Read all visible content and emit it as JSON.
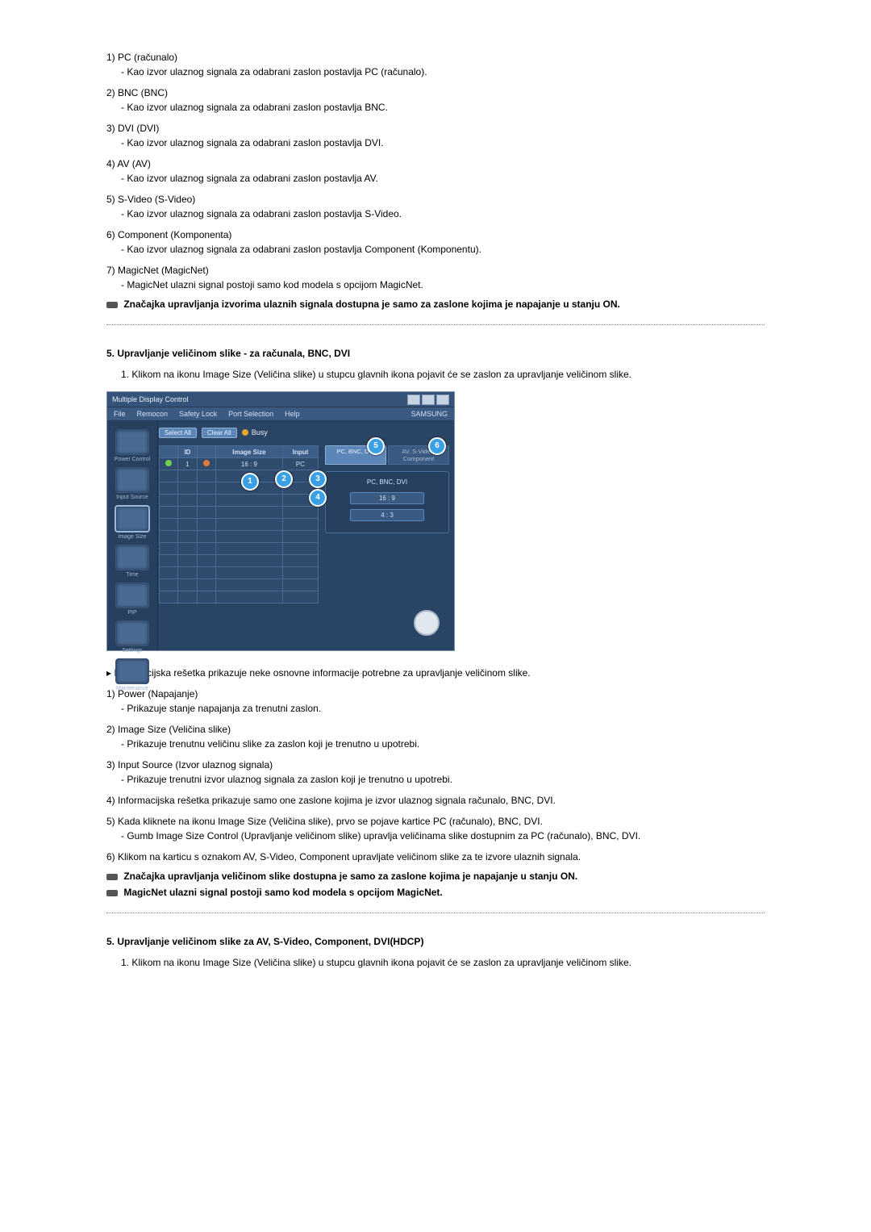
{
  "list1": [
    {
      "num": "1)",
      "title": "PC (računalo)",
      "desc": "Kao izvor ulaznog signala za odabrani zaslon postavlja PC (računalo)."
    },
    {
      "num": "2)",
      "title": "BNC (BNC)",
      "desc": "Kao izvor ulaznog signala za odabrani zaslon postavlja BNC."
    },
    {
      "num": "3)",
      "title": "DVI (DVI)",
      "desc": "Kao izvor ulaznog signala za odabrani zaslon postavlja DVI."
    },
    {
      "num": "4)",
      "title": "AV (AV)",
      "desc": "Kao izvor ulaznog signala za odabrani zaslon postavlja AV."
    },
    {
      "num": "5)",
      "title": "S-Video (S-Video)",
      "desc": "Kao izvor ulaznog signala za odabrani zaslon postavlja S-Video."
    },
    {
      "num": "6)",
      "title": "Component (Komponenta)",
      "desc": "Kao izvor ulaznog signala za odabrani zaslon postavlja Component (Komponentu)."
    },
    {
      "num": "7)",
      "title": "MagicNet (MagicNet)",
      "desc": "MagicNet ulazni signal postoji samo kod modela s opcijom MagicNet."
    }
  ],
  "note1": "Značajka upravljanja izvorima ulaznih signala dostupna je samo za zaslone kojima je napajanje u stanju ON.",
  "sectionA": {
    "heading": "5. Upravljanje veličinom slike - za računala, BNC, DVI",
    "intro_num": "1.",
    "intro": "Klikom na ikonu Image Size (Veličina slike) u stupcu glavnih ikona pojavit će se zaslon za upravljanje veličinom slike."
  },
  "mock": {
    "title": "Multiple Display Control",
    "menus": [
      "File",
      "Remocon",
      "Safety Lock",
      "Port Selection",
      "Help"
    ],
    "samsung": "SAMSUNG",
    "btn_select": "Select All",
    "btn_clear": "Clear All",
    "busy": "Busy",
    "sidebar": [
      {
        "label": "Power Control"
      },
      {
        "label": "Input Source"
      },
      {
        "label": "Image Size"
      },
      {
        "label": "Time"
      },
      {
        "label": "PIP"
      },
      {
        "label": "Settings"
      },
      {
        "label": "Maintenance"
      }
    ],
    "grid": {
      "headers": [
        "",
        "ID",
        "",
        "Image Size",
        "Input"
      ],
      "row1": {
        "id": "1",
        "size": "16 : 9",
        "input": "PC"
      }
    },
    "tabs": {
      "active": "PC, BNC, DVI",
      "inactive": "AV, S-Video, Component"
    },
    "panel_label": "PC, BNC, DVI",
    "opt1": "16 : 9",
    "opt2": "4 : 3"
  },
  "arrow_line": "Informacijska rešetka prikazuje neke osnovne informacije potrebne za upravljanje veličinom slike.",
  "list2": [
    {
      "num": "1)",
      "title": "Power (Napajanje)",
      "desc": "Prikazuje stanje napajanja za trenutni zaslon."
    },
    {
      "num": "2)",
      "title": "Image Size (Veličina slike)",
      "desc": "Prikazuje trenutnu veličinu slike za zaslon koji je trenutno u upotrebi."
    },
    {
      "num": "3)",
      "title": "Input Source (Izvor ulaznog signala)",
      "desc": "Prikazuje trenutni izvor ulaznog signala za zaslon koji je trenutno u upotrebi."
    },
    {
      "num": "4)",
      "title": "Informacijska rešetka prikazuje samo one zaslone kojima je izvor ulaznog signala računalo, BNC, DVI.",
      "desc": null
    },
    {
      "num": "5)",
      "title": "Kada kliknete na ikonu Image Size (Veličina slike), prvo se pojave kartice PC (računalo), BNC, DVI.",
      "desc": "Gumb Image Size Control (Upravljanje veličinom slike) upravlja veličinama slike dostupnim za PC (računalo), BNC, DVI."
    },
    {
      "num": "6)",
      "title": "Klikom na karticu s oznakom AV, S-Video, Component upravljate veličinom slike za te izvore ulaznih signala.",
      "desc": null
    }
  ],
  "note2": "Značajka upravljanja veličinom slike dostupna je samo za zaslone kojima je napajanje u stanju ON.",
  "note3": "MagicNet ulazni signal postoji samo kod modela s opcijom MagicNet.",
  "sectionB": {
    "heading": "5. Upravljanje veličinom slike za AV, S-Video, Component, DVI(HDCP)",
    "intro_num": "1.",
    "intro": "Klikom na ikonu Image Size (Veličina slike) u stupcu glavnih ikona pojavit će se zaslon za upravljanje veličinom slike."
  }
}
